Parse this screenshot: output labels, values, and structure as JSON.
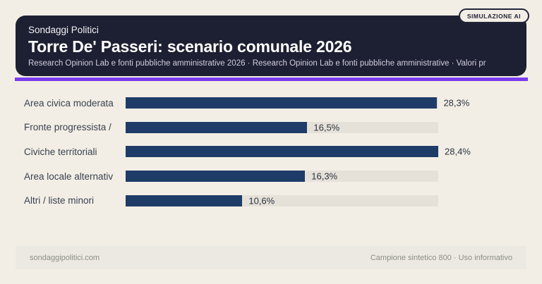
{
  "badge": {
    "label": "SIMULAZIONE AI"
  },
  "header": {
    "kicker": "Sondaggi Politici",
    "title": "Torre De' Passeri: scenario comunale 2026",
    "subtitle": "Research Opinion Lab e fonti pubbliche amministrative 2026 · Research Opinion Lab e fonti pubbliche amministrative · Valori pr"
  },
  "chart_data": {
    "type": "bar",
    "orientation": "horizontal",
    "title": "Torre De' Passeri: scenario comunale 2026",
    "unit": "%",
    "decimal_style": "comma",
    "categories": [
      "Area civica moderata",
      "Fronte progressista /",
      "Civiche territoriali",
      "Area locale alternativ",
      "Altri / liste minori"
    ],
    "values": [
      28.3,
      16.5,
      28.4,
      16.3,
      10.6
    ],
    "value_labels": [
      "28,3%",
      "16,5%",
      "28,4%",
      "16,3%",
      "10,6%"
    ],
    "scale_max": 28.4,
    "bar_color": "#1f3c69",
    "track_color": "#e5e1d9",
    "grid": false,
    "legend": false
  },
  "footer": {
    "left": "sondaggipolitici.com",
    "right": "Campione sintetico 800 · Uso informativo"
  },
  "colors": {
    "page_background": "#f3eee5",
    "card_background": "#1d2032",
    "accent": "#7c3bf0",
    "bar": "#1f3c69",
    "track": "#e5e1d9",
    "footer_background": "#ebe9e1"
  }
}
